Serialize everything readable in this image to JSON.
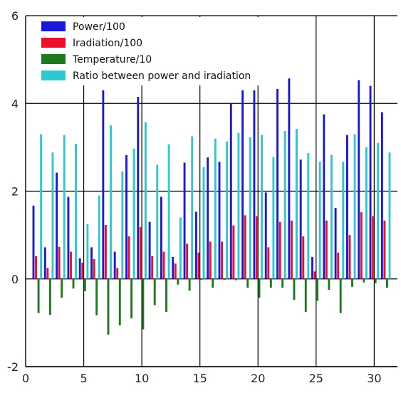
{
  "chart_data": {
    "type": "bar",
    "title": "",
    "xlabel": "",
    "ylabel": "",
    "xlim": [
      0,
      32
    ],
    "ylim": [
      -2,
      6
    ],
    "x_ticks": [
      0,
      5,
      10,
      15,
      20,
      25,
      30
    ],
    "y_ticks": [
      -2,
      0,
      2,
      4,
      6
    ],
    "grid": true,
    "legend_position": "top-left",
    "x": [
      1,
      2,
      3,
      4,
      5,
      6,
      7,
      8,
      9,
      10,
      11,
      12,
      13,
      14,
      15,
      16,
      17,
      18,
      19,
      20,
      21,
      22,
      23,
      24,
      25,
      26,
      27,
      28,
      29,
      30,
      31
    ],
    "series": [
      {
        "name": "Power/100",
        "color": "#1a1ad6",
        "values": [
          1.67,
          0.72,
          2.42,
          1.87,
          0.47,
          0.72,
          4.3,
          0.62,
          2.82,
          4.15,
          1.3,
          1.87,
          0.5,
          2.65,
          1.53,
          2.77,
          2.67,
          4.0,
          4.3,
          4.3,
          1.97,
          4.33,
          4.57,
          2.72,
          0.5,
          3.75,
          1.62,
          3.28,
          4.53,
          4.4,
          3.8
        ]
      },
      {
        "name": "Iradiation/100",
        "color": "#e8102a",
        "values": [
          0.52,
          0.25,
          0.73,
          0.62,
          0.37,
          0.45,
          1.23,
          0.25,
          0.97,
          1.18,
          0.52,
          0.62,
          0.35,
          0.8,
          0.6,
          0.85,
          0.85,
          1.22,
          1.45,
          1.43,
          0.72,
          1.3,
          1.33,
          0.97,
          0.17,
          1.33,
          0.6,
          1.0,
          1.52,
          1.43,
          1.33
        ]
      },
      {
        "name": "Temperature/10",
        "color": "#1f7a1f",
        "values": [
          -0.78,
          -0.82,
          -0.43,
          -0.22,
          -0.28,
          -0.83,
          -1.27,
          -1.06,
          -0.9,
          -1.15,
          -0.6,
          -0.75,
          -0.13,
          -0.27,
          -0.02,
          -0.2,
          -0.02,
          -0.03,
          -0.2,
          -0.43,
          -0.2,
          -0.2,
          -0.48,
          -0.75,
          -0.5,
          -0.25,
          -0.78,
          -0.18,
          -0.08,
          -0.1,
          -0.2
        ]
      },
      {
        "name": "Ratio between power and iradiation",
        "color": "#2fc8cf",
        "values": [
          3.3,
          2.88,
          3.28,
          3.08,
          1.25,
          1.9,
          3.5,
          2.45,
          2.97,
          3.57,
          2.6,
          3.07,
          1.4,
          3.25,
          2.55,
          3.2,
          3.13,
          3.33,
          3.23,
          3.28,
          2.78,
          3.37,
          3.42,
          2.87,
          2.67,
          2.83,
          2.67,
          3.3,
          3.0,
          3.1,
          2.88
        ]
      }
    ]
  }
}
